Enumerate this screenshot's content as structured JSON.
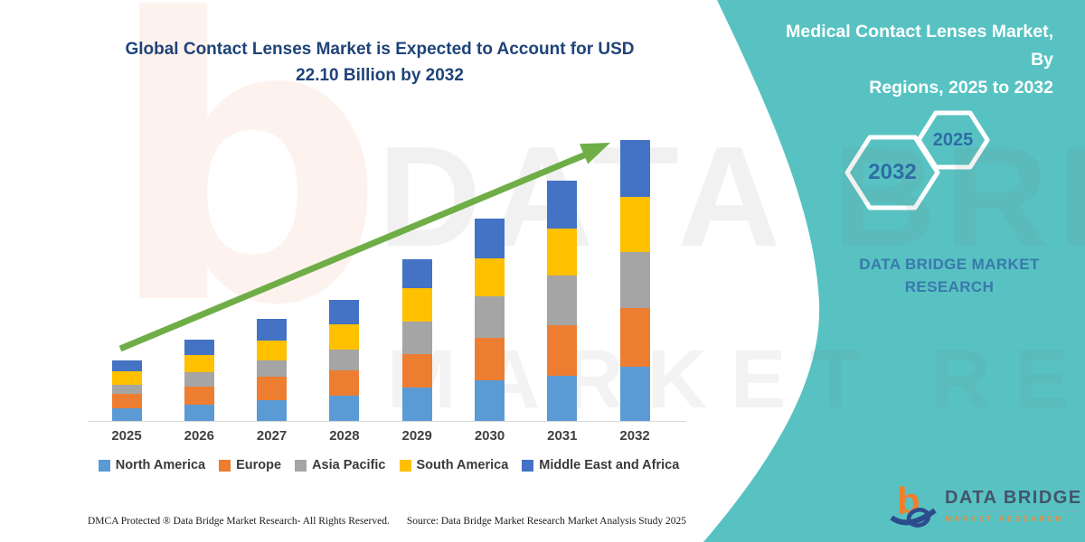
{
  "main_title": {
    "line1": "Global Contact Lenses Market is Expected to Account for USD",
    "line2": "22.10 Billion by 2032",
    "color": "#1F4379"
  },
  "side_panel": {
    "bg_color": "#58C2C2",
    "title_line1": "Medical Contact Lenses Market, By",
    "title_line2": "Regions, 2025 to 2032",
    "hexagon_large_label": "2032",
    "hexagon_small_label": "2025",
    "hexagon_label_color": "#2E6DA4",
    "brand_caption": "DATA BRIDGE MARKET RESEARCH",
    "caption_color": "#3879AB"
  },
  "chart_data": {
    "type": "bar",
    "stacked": true,
    "title": "Global Contact Lenses Market is Expected to Account for USD 22.10 Billion by 2032",
    "unit": "USD Billion",
    "categories": [
      "2025",
      "2026",
      "2027",
      "2028",
      "2029",
      "2030",
      "2031",
      "2032"
    ],
    "series": [
      {
        "name": "North America",
        "color": "#5B9BD5",
        "values": [
          0.99,
          1.28,
          1.63,
          1.98,
          2.62,
          3.19,
          3.54,
          4.28
        ]
      },
      {
        "name": "Europe",
        "color": "#ED7D31",
        "values": [
          1.13,
          1.42,
          1.84,
          1.98,
          2.62,
          3.33,
          3.97,
          4.56
        ]
      },
      {
        "name": "Asia Pacific",
        "color": "#A5A5A5",
        "values": [
          0.75,
          1.13,
          1.28,
          1.63,
          2.55,
          3.26,
          3.9,
          4.42
        ]
      },
      {
        "name": "South America",
        "color": "#FFC000",
        "values": [
          1.05,
          1.35,
          1.56,
          1.98,
          2.62,
          2.97,
          3.68,
          4.35
        ]
      },
      {
        "name": "Middle East and Africa",
        "color": "#4472C4",
        "values": [
          0.85,
          1.2,
          1.7,
          1.91,
          2.27,
          3.12,
          3.75,
          4.49
        ]
      }
    ],
    "totals": [
      4.77,
      6.38,
      8.01,
      9.48,
      12.68,
      15.87,
      18.84,
      22.1
    ],
    "ylim": [
      0,
      24
    ],
    "grid": false,
    "legend_position": "bottom",
    "annotations": [
      {
        "type": "trend-arrow",
        "direction": "up",
        "color": "#6FAE47"
      }
    ]
  },
  "watermark": {
    "glyph": "b",
    "line1": "DATA BRIDGE",
    "line2": "MARKET RESEARCH"
  },
  "logo": {
    "mark_glyph": "b",
    "title": "DATA BRIDGE",
    "subtitle": "MARKET RESEARCH"
  },
  "footer": {
    "dmca": "DMCA Protected ® Data Bridge Market Research-  All Rights Reserved.",
    "source": "Source: Data Bridge Market Research  Market Analysis Study 2025"
  }
}
